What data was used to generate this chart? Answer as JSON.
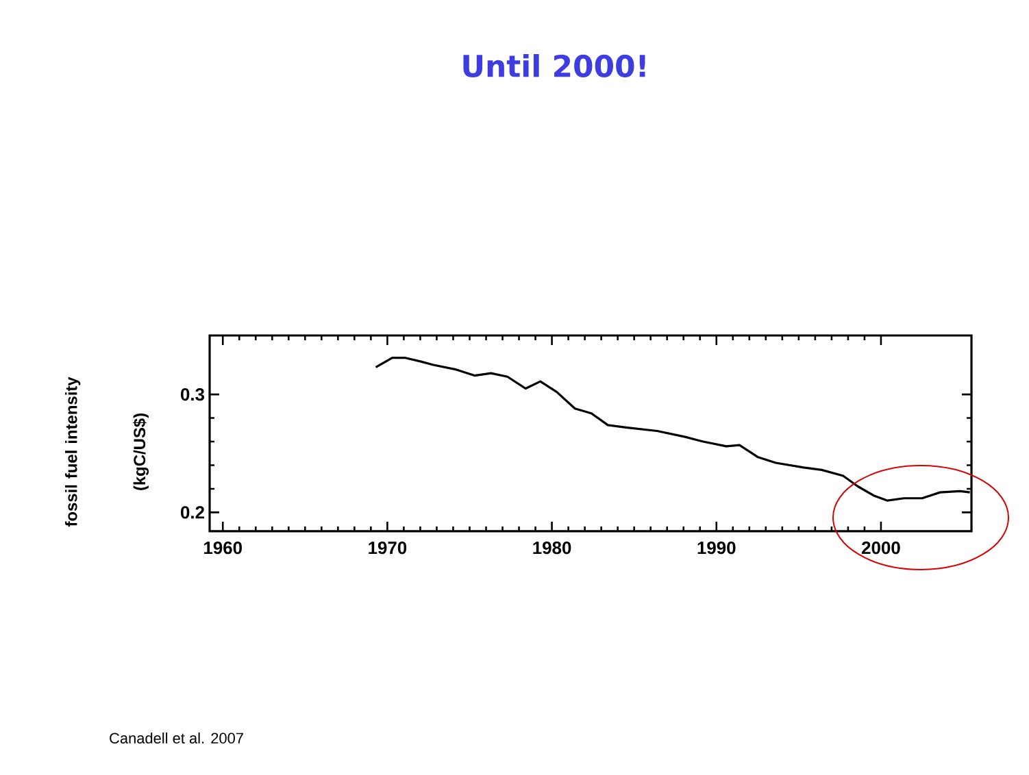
{
  "chart_data": {
    "type": "line",
    "title": "Until 2000!",
    "ylabel": "fossil fuel intensity (kgC/US$)",
    "annotations": [
      "Canadell et al. 2007"
    ],
    "xlim": [
      1959.2,
      2005.5
    ],
    "ylim": [
      0.184,
      0.35
    ],
    "xticks": [
      1960,
      1970,
      1980,
      1990,
      2000
    ],
    "yticks": [
      0.2,
      0.3
    ],
    "grid": false,
    "marker": "none",
    "line_style": "solid",
    "series": [
      {
        "color": "#000000",
        "x": [
          1969.3,
          1970.3,
          1971.1,
          1972,
          1972.8,
          1974.2,
          1975.3,
          1976.3,
          1977.3,
          1978.4,
          1979.3,
          1980.3,
          1981.4,
          1982.4,
          1983.4,
          1984.5,
          1986.4,
          1988.1,
          1989.2,
          1990.6,
          1991.4,
          1992.5,
          1993.6,
          1995.3,
          1996.4,
          1997.7,
          1998.6,
          1999.6,
          2000.4,
          2001.4,
          2002.5,
          2003.6,
          2004.8,
          2005.4
        ],
        "values": [
          0.323,
          0.331,
          0.331,
          0.328,
          0.325,
          0.321,
          0.316,
          0.318,
          0.315,
          0.305,
          0.311,
          0.302,
          0.288,
          0.284,
          0.274,
          0.272,
          0.269,
          0.264,
          0.26,
          0.256,
          0.257,
          0.247,
          0.242,
          0.238,
          0.236,
          0.231,
          0.222,
          0.214,
          0.21,
          0.212,
          0.212,
          0.217,
          0.218,
          0.217
        ]
      }
    ]
  }
}
